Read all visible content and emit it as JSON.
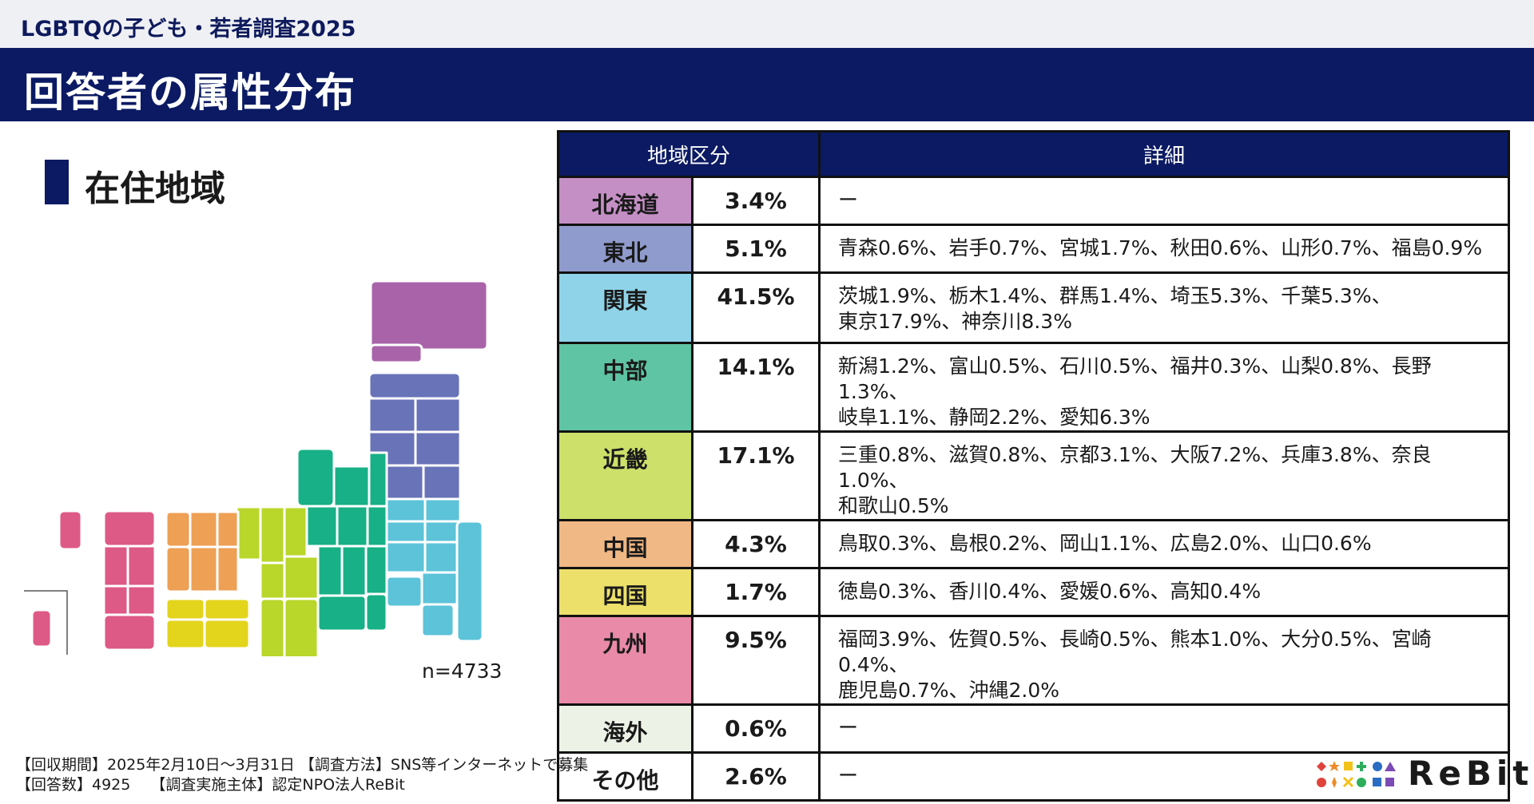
{
  "header": {
    "survey_name": "LGBTQの子ども・若者調査2025",
    "title": "回答者の属性分布"
  },
  "section": {
    "label": "在住地域"
  },
  "map": {
    "sample_label": "n=4733"
  },
  "table": {
    "headers": [
      "地域区分",
      "詳細"
    ],
    "rows": [
      {
        "region": "北海道",
        "percent": "3.4%",
        "detail": "ー",
        "color": "#c48fc4"
      },
      {
        "region": "東北",
        "percent": "5.1%",
        "detail": "青森0.6%、岩手0.7%、宮城1.7%、秋田0.6%、山形0.7%、福島0.9%",
        "color": "#8f9bcc"
      },
      {
        "region": "関東",
        "percent": "41.5%",
        "detail": "茨城1.9%、栃木1.4%、群馬1.4%、埼玉5.3%、千葉5.3%、\n東京17.9%、神奈川8.3%",
        "color": "#8fd3e8"
      },
      {
        "region": "中部",
        "percent": "14.1%",
        "detail": "新潟1.2%、富山0.5%、石川0.5%、福井0.3%、山梨0.8%、長野1.3%、\n岐阜1.1%、静岡2.2%、愛知6.3%",
        "color": "#5ec4a3"
      },
      {
        "region": "近畿",
        "percent": "17.1%",
        "detail": "三重0.8%、滋賀0.8%、京都3.1%、大阪7.2%、兵庫3.8%、奈良1.0%、\n和歌山0.5%",
        "color": "#cde06a"
      },
      {
        "region": "中国",
        "percent": "4.3%",
        "detail": "鳥取0.3%、島根0.2%、岡山1.1%、広島2.0%、山口0.6%",
        "color": "#f0b884"
      },
      {
        "region": "四国",
        "percent": "1.7%",
        "detail": "徳島0.3%、香川0.4%、愛媛0.6%、高知0.4%",
        "color": "#ece06a"
      },
      {
        "region": "九州",
        "percent": "9.5%",
        "detail": "福岡3.9%、佐賀0.5%、長崎0.5%、熊本1.0%、大分0.5%、宮崎0.4%、\n鹿児島0.7%、沖縄2.0%",
        "color": "#e88aa8"
      },
      {
        "region": "海外",
        "percent": "0.6%",
        "detail": "ー",
        "color": "#ecf2e6"
      },
      {
        "region": "その他",
        "percent": "2.6%",
        "detail": "ー",
        "color": "#ffffff"
      }
    ]
  },
  "footer": {
    "line1": "【回収期間】2025年2月10日～3月31日 【調査方法】SNS等インターネットで募集",
    "line2": "【回答数】4925　 【調査実施主体】認定NPO法人ReBit"
  },
  "logo": {
    "text": "ReBit"
  },
  "colors": {
    "navy": "#0b1a63",
    "map_hokkaido": "#a964a9",
    "map_tohoku": "#6873b8",
    "map_kanto": "#5cc3d9",
    "map_chubu": "#18b086",
    "map_kinki": "#b9d62a",
    "map_chugoku": "#eea055",
    "map_shikoku": "#e3d41c",
    "map_kyushu": "#de5a86"
  }
}
